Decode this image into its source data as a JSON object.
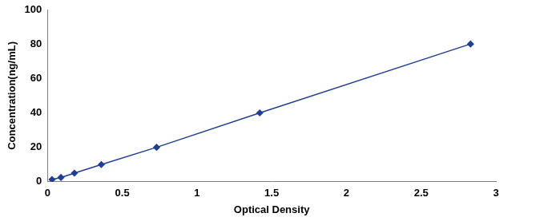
{
  "chart_data": {
    "type": "scatter",
    "x_label": "Optical Density",
    "y_label": "Concentration(ng/mL)",
    "x": [
      0.03,
      0.09,
      0.18,
      0.36,
      0.73,
      1.42,
      2.83
    ],
    "values": [
      1.25,
      2.5,
      5,
      10,
      20,
      40,
      80
    ],
    "color": "#1f3f99",
    "marker": "diamond",
    "line_style": "solid",
    "xlim": [
      0,
      3
    ],
    "xticks": [
      0,
      0.5,
      1,
      1.5,
      2,
      2.5,
      3
    ],
    "ylim": [
      0,
      100
    ],
    "yticks": [
      0,
      20,
      40,
      60,
      80,
      100
    ],
    "grid": false
  }
}
